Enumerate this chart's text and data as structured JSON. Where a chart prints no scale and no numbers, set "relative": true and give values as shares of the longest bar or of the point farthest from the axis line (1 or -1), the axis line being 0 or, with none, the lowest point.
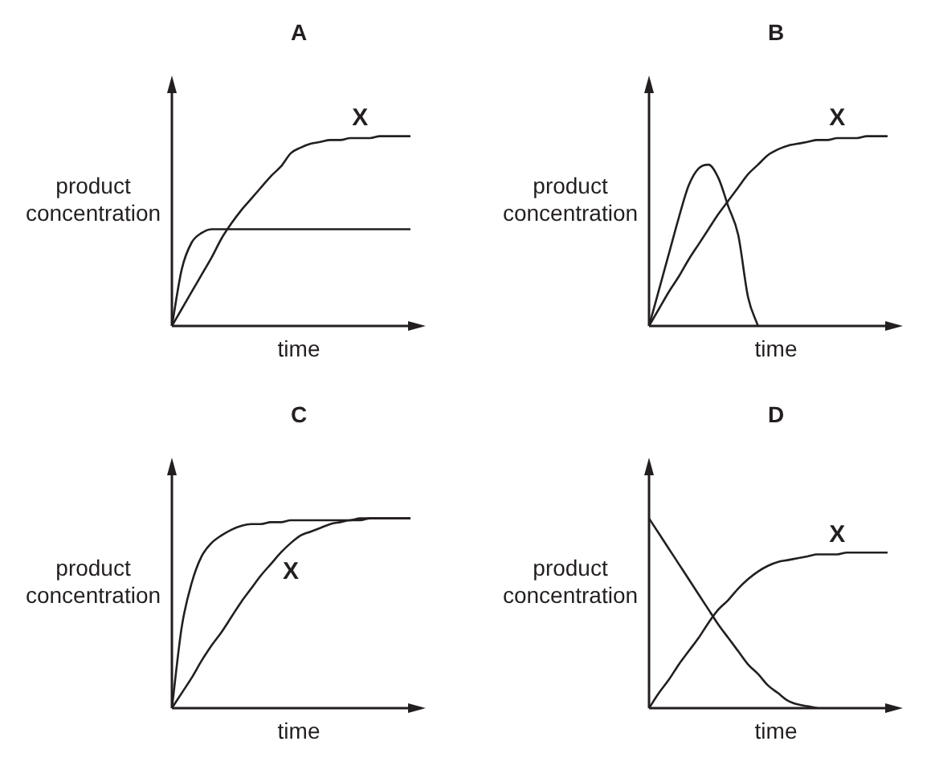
{
  "chart_data": [
    {
      "type": "line",
      "title": "A",
      "xlabel": "time",
      "ylabel": "product concentration",
      "relative": true,
      "categories": [
        null,
        null,
        null,
        null,
        null,
        null,
        null,
        null,
        null,
        null,
        null,
        null,
        null,
        null,
        null,
        null,
        null,
        null,
        null,
        null,
        null,
        null,
        null,
        null,
        null
      ],
      "series": [
        {
          "name": "X",
          "color": "#231f20",
          "values": [
            0,
            0.09,
            0.18,
            0.27,
            0.36,
            0.46,
            0.54,
            0.61,
            0.67,
            0.73,
            0.79,
            0.84,
            0.91,
            0.94,
            0.96,
            0.97,
            0.98,
            0.98,
            0.99,
            0.99,
            0.99,
            1,
            1,
            1,
            1
          ]
        },
        {
          "color": "#231f20",
          "values": [
            0,
            0.3,
            0.44,
            0.49,
            0.51,
            0.51,
            0.51,
            0.51,
            0.51,
            0.51,
            0.51,
            0.51,
            0.51,
            0.51,
            0.51,
            0.51,
            0.51,
            0.51,
            0.51,
            0.51,
            0.51,
            0.51,
            0.51,
            0.51,
            0.51
          ]
        }
      ]
    },
    {
      "type": "line",
      "title": "B",
      "xlabel": "time",
      "ylabel": "product concentration",
      "relative": true,
      "categories": [
        null,
        null,
        null,
        null,
        null,
        null,
        null,
        null,
        null,
        null,
        null,
        null,
        null,
        null,
        null,
        null,
        null,
        null,
        null,
        null,
        null,
        null,
        null,
        null,
        null
      ],
      "series": [
        {
          "name": "X",
          "color": "#231f20",
          "values": [
            0,
            0.09,
            0.18,
            0.26,
            0.35,
            0.43,
            0.51,
            0.59,
            0.66,
            0.73,
            0.8,
            0.85,
            0.9,
            0.93,
            0.95,
            0.96,
            0.97,
            0.98,
            0.98,
            0.99,
            0.99,
            0.99,
            1,
            1,
            1
          ]
        },
        {
          "color": "#231f20",
          "values": [
            0,
            0.19,
            0.38,
            0.57,
            0.74,
            0.83,
            0.85,
            0.78,
            0.63,
            0.48,
            0.15,
            0,
            null,
            null,
            null,
            null,
            null,
            null,
            null,
            null,
            null,
            null,
            null,
            null,
            null
          ]
        }
      ]
    },
    {
      "type": "line",
      "title": "C",
      "xlabel": "time",
      "ylabel": "product concentration",
      "relative": true,
      "categories": [
        null,
        null,
        null,
        null,
        null,
        null,
        null,
        null,
        null,
        null,
        null,
        null,
        null,
        null,
        null,
        null,
        null,
        null,
        null,
        null,
        null,
        null,
        null,
        null,
        null
      ],
      "series": [
        {
          "name": "X",
          "color": "#231f20",
          "values": [
            0,
            0.08,
            0.16,
            0.25,
            0.33,
            0.4,
            0.48,
            0.56,
            0.63,
            0.7,
            0.76,
            0.82,
            0.87,
            0.91,
            0.93,
            0.95,
            0.97,
            0.98,
            0.99,
            0.99,
            1,
            1,
            1,
            1,
            1
          ]
        },
        {
          "color": "#231f20",
          "values": [
            0,
            0.43,
            0.66,
            0.8,
            0.87,
            0.91,
            0.94,
            0.96,
            0.97,
            0.97,
            0.98,
            0.98,
            0.99,
            0.99,
            0.99,
            0.99,
            0.99,
            0.99,
            0.99,
            1,
            1,
            1,
            1,
            1,
            1
          ]
        }
      ]
    },
    {
      "type": "line",
      "title": "D",
      "xlabel": "time",
      "ylabel": "product concentration",
      "relative": true,
      "categories": [
        null,
        null,
        null,
        null,
        null,
        null,
        null,
        null,
        null,
        null,
        null,
        null,
        null,
        null,
        null,
        null,
        null,
        null,
        null,
        null,
        null,
        null,
        null,
        null,
        null
      ],
      "series": [
        {
          "name": "X",
          "color": "#231f20",
          "values": [
            0,
            0.08,
            0.15,
            0.23,
            0.3,
            0.37,
            0.45,
            0.52,
            0.57,
            0.63,
            0.68,
            0.72,
            0.75,
            0.77,
            0.78,
            0.79,
            0.8,
            0.81,
            0.81,
            0.81,
            0.82,
            0.82,
            0.82,
            0.82,
            0.82
          ]
        },
        {
          "color": "#231f20",
          "values": [
            1,
            0.92,
            0.84,
            0.76,
            0.68,
            0.6,
            0.52,
            0.44,
            0.37,
            0.3,
            0.23,
            0.18,
            0.12,
            0.08,
            0.04,
            0.02,
            0.01,
            0,
            null,
            null,
            null,
            null,
            null,
            null,
            null
          ]
        }
      ]
    }
  ]
}
